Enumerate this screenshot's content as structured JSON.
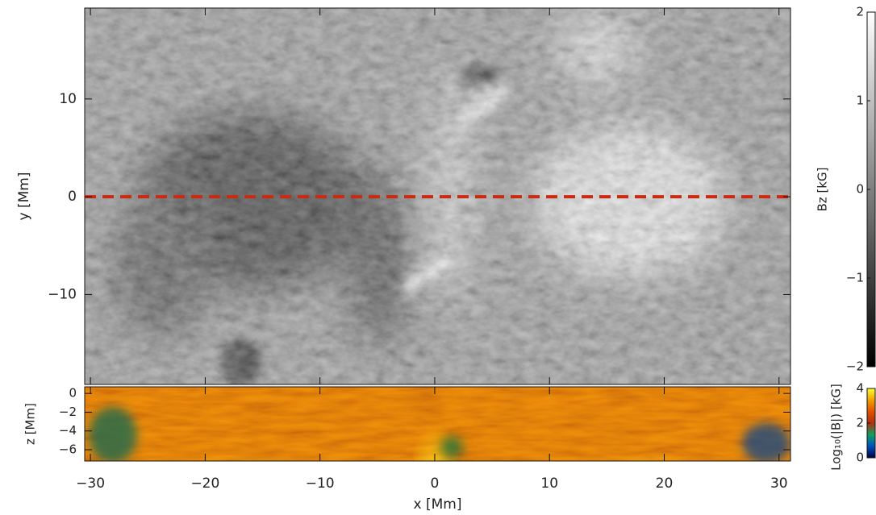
{
  "chart_data": [
    {
      "type": "image",
      "xlim": [
        -30.5,
        31
      ],
      "ylim": [
        -19.2,
        19.3
      ],
      "yticks": [
        {
          "value": -10,
          "label": "−10"
        },
        0,
        10
      ],
      "ylabel": "y [Mm]",
      "cut_line": {
        "y": 0,
        "color": "#cc2a10"
      },
      "colorbar": {
        "label": "Bz [kG]",
        "lim": [
          -2,
          2
        ],
        "ticks": [
          {
            "value": -2,
            "label": "−2"
          },
          {
            "value": -1,
            "label": "−1"
          },
          0,
          1,
          2
        ],
        "colors": [
          "#000000",
          "#ffffff"
        ]
      }
    },
    {
      "type": "image",
      "xlim": [
        -30.5,
        31
      ],
      "ylim": [
        -7.2,
        0.7
      ],
      "xticks": [
        {
          "value": -30,
          "label": "−30"
        },
        {
          "value": -20,
          "label": "−20"
        },
        {
          "value": -10,
          "label": "−10"
        },
        0,
        10,
        20,
        30
      ],
      "yticks": [
        {
          "value": -6,
          "label": "−6"
        },
        {
          "value": -4,
          "label": "−4"
        },
        {
          "value": -2,
          "label": "−2"
        },
        0
      ],
      "xlabel": "x [Mm]",
      "ylabel": "z [Mm]",
      "colorbar": {
        "label": "Log₁₀(|B|) [kG]",
        "lim": [
          0,
          4
        ],
        "ticks": [
          0,
          2,
          4
        ],
        "colors": [
          "#000040",
          "#0050c0",
          "#10a060",
          "#b03010",
          "#e05000",
          "#f0a000",
          "#ffff30"
        ]
      }
    }
  ]
}
